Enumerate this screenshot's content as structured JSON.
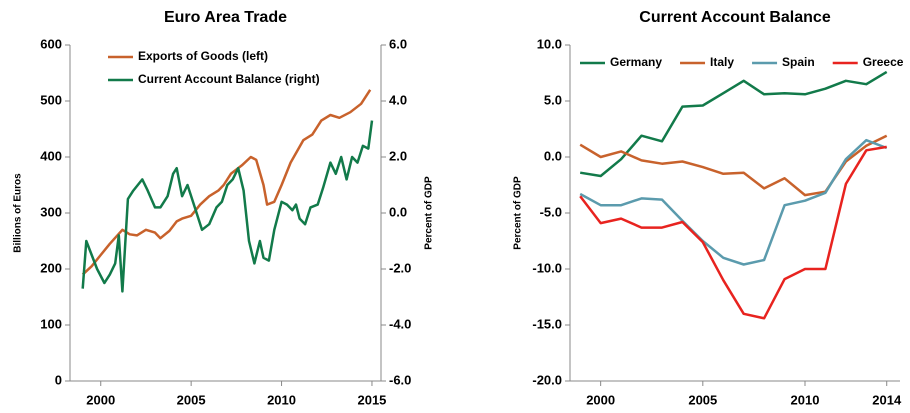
{
  "chart_data": [
    {
      "type": "line",
      "title": "Euro Area Trade",
      "ylabel": "Billions of Euros",
      "y2label": "Percent of GDP",
      "xlim": [
        1998.3,
        2015.5
      ],
      "xticks": [
        2000,
        2005,
        2010,
        2015
      ],
      "ylim": [
        0,
        600
      ],
      "yticks": [
        0,
        100,
        200,
        300,
        400,
        500,
        600
      ],
      "y2lim": [
        -6,
        6
      ],
      "y2ticks": [
        {
          "value": -6,
          "label": "-6.0"
        },
        {
          "value": -4,
          "label": "-4.0"
        },
        {
          "value": -2,
          "label": "-2.0"
        },
        {
          "value": 0,
          "label": "0.0"
        },
        {
          "value": 2,
          "label": "2.0"
        },
        {
          "value": 4,
          "label": "4.0"
        },
        {
          "value": 6,
          "label": "6.0"
        }
      ],
      "legend": "top-left",
      "grid": false,
      "series": [
        {
          "name": "Exports of Goods (left)",
          "color": "#c8622c",
          "x": [
            1999,
            1999.5,
            2000,
            2000.5,
            2001.2,
            2001.6,
            2002,
            2002.5,
            2003,
            2003.3,
            2003.8,
            2004.2,
            2004.5,
            2005,
            2005.5,
            2006,
            2006.5,
            2006.8,
            2007.2,
            2007.8,
            2008.3,
            2008.6,
            2009,
            2009.2,
            2009.6,
            2010,
            2010.5,
            2011.2,
            2011.7,
            2012.2,
            2012.7,
            2013.2,
            2013.8,
            2014.4,
            2014.9
          ],
          "values": [
            190,
            205,
            225,
            245,
            270,
            262,
            260,
            270,
            265,
            255,
            268,
            285,
            290,
            295,
            315,
            330,
            340,
            350,
            370,
            385,
            400,
            395,
            350,
            315,
            320,
            350,
            390,
            430,
            440,
            465,
            475,
            470,
            480,
            495,
            520
          ]
        },
        {
          "name": "Current Account Balance (right)",
          "color": "#127a4a",
          "axis": "y2",
          "x": [
            1999,
            1999.2,
            1999.5,
            1999.8,
            2000.2,
            2000.5,
            2000.8,
            2001,
            2001.2,
            2001.5,
            2001.8,
            2002.3,
            2002.6,
            2003,
            2003.3,
            2003.7,
            2004,
            2004.2,
            2004.5,
            2004.8,
            2005.2,
            2005.6,
            2006,
            2006.4,
            2006.7,
            2007,
            2007.3,
            2007.6,
            2007.9,
            2008.2,
            2008.5,
            2008.8,
            2009,
            2009.3,
            2009.6,
            2010,
            2010.3,
            2010.6,
            2010.8,
            2011,
            2011.3,
            2011.6,
            2012,
            2012.3,
            2012.7,
            2013,
            2013.3,
            2013.6,
            2013.9,
            2014.2,
            2014.5,
            2014.8,
            2015
          ],
          "values": [
            -2.7,
            -1.0,
            -1.5,
            -2.0,
            -2.5,
            -2.2,
            -1.8,
            -0.8,
            -2.8,
            0.5,
            0.8,
            1.2,
            0.8,
            0.2,
            0.2,
            0.6,
            1.4,
            1.6,
            0.6,
            1.0,
            0.2,
            -0.6,
            -0.4,
            0.2,
            0.4,
            1.0,
            1.2,
            1.6,
            0.8,
            -1.0,
            -1.8,
            -1.0,
            -1.6,
            -1.7,
            -0.6,
            0.4,
            0.3,
            0.1,
            0.3,
            -0.2,
            -0.4,
            0.2,
            0.3,
            0.9,
            1.8,
            1.4,
            2.0,
            1.2,
            2.0,
            1.8,
            2.4,
            2.3,
            3.3
          ]
        }
      ]
    },
    {
      "type": "line",
      "title": "Current Account Balance",
      "ylabel": "Percent of GDP",
      "xlim": [
        1998.5,
        2014.65
      ],
      "xticks": [
        2000,
        2005,
        2010,
        2014
      ],
      "x": [
        1999,
        2000,
        2001,
        2002,
        2003,
        2004,
        2005,
        2006,
        2007,
        2008,
        2009,
        2010,
        2011,
        2012,
        2013,
        2014
      ],
      "ylim": [
        -20,
        10
      ],
      "yticks": [
        {
          "value": -20,
          "label": "-20.0"
        },
        {
          "value": -15,
          "label": "-15.0"
        },
        {
          "value": -10,
          "label": "-10.0"
        },
        {
          "value": -5,
          "label": "-5.0"
        },
        {
          "value": 0,
          "label": "0.0"
        },
        {
          "value": 5,
          "label": "5.0"
        },
        {
          "value": 10,
          "label": "10.0"
        }
      ],
      "legend": "top",
      "grid": false,
      "series": [
        {
          "name": "Germany",
          "color": "#127a4a",
          "values": [
            -1.4,
            -1.7,
            -0.2,
            1.9,
            1.4,
            4.5,
            4.6,
            5.7,
            6.8,
            5.6,
            5.7,
            5.6,
            6.1,
            6.8,
            6.5,
            7.6
          ]
        },
        {
          "name": "Italy",
          "color": "#c8622c",
          "values": [
            1.1,
            0.0,
            0.5,
            -0.3,
            -0.6,
            -0.4,
            -0.9,
            -1.5,
            -1.4,
            -2.8,
            -1.9,
            -3.4,
            -3.1,
            -0.4,
            1.0,
            1.9
          ]
        },
        {
          "name": "Spain",
          "color": "#5b9bad",
          "values": [
            -3.3,
            -4.3,
            -4.3,
            -3.7,
            -3.8,
            -5.7,
            -7.5,
            -9.0,
            -9.6,
            -9.2,
            -4.3,
            -3.9,
            -3.2,
            -0.2,
            1.5,
            0.8
          ]
        },
        {
          "name": "Greece",
          "color": "#e8231f",
          "values": [
            -3.5,
            -5.9,
            -5.5,
            -6.3,
            -6.3,
            -5.8,
            -7.6,
            -11.0,
            -14.0,
            -14.4,
            -10.9,
            -10.0,
            -10.0,
            -2.4,
            0.6,
            0.9
          ]
        }
      ]
    }
  ]
}
